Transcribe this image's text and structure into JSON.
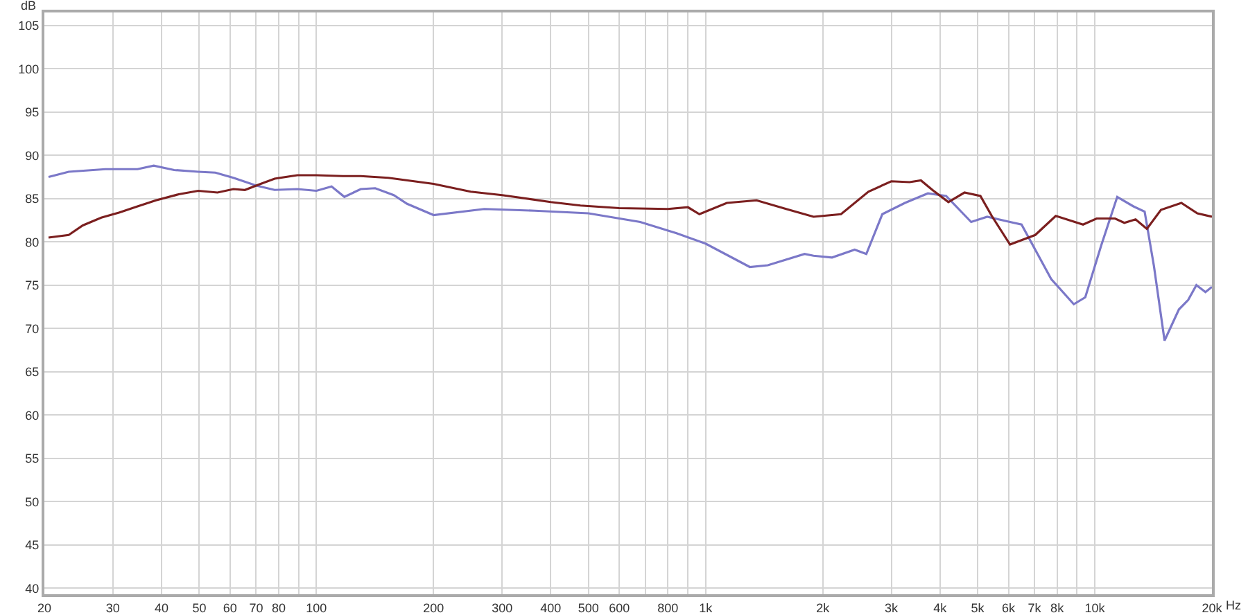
{
  "chart_data": {
    "type": "line",
    "ylabel": "dB",
    "log": "x",
    "grid": true,
    "marker": "none",
    "line_style": "solid",
    "xlim": [
      20,
      20000
    ],
    "ylim": [
      39.3,
      106.5
    ],
    "xticks": [
      20,
      30,
      40,
      50,
      60,
      70,
      80,
      {
        "value": 90,
        "label": null
      },
      100,
      200,
      300,
      400,
      500,
      600,
      {
        "value": 700,
        "label": null
      },
      800,
      {
        "value": 900,
        "label": null
      },
      {
        "value": 1000,
        "label": "1k"
      },
      {
        "value": 2000,
        "label": "2k"
      },
      {
        "value": 3000,
        "label": "3k"
      },
      {
        "value": 4000,
        "label": "4k"
      },
      {
        "value": 5000,
        "label": "5k"
      },
      {
        "value": 6000,
        "label": "6k"
      },
      {
        "value": 7000,
        "label": "7k"
      },
      {
        "value": 8000,
        "label": "8k"
      },
      {
        "value": 9000,
        "label": null
      },
      {
        "value": 10000,
        "label": "10k"
      },
      {
        "value": 20000,
        "label": "20k"
      }
    ],
    "xlabel": "Hz",
    "yticks": [
      40,
      45,
      50,
      55,
      60,
      65,
      70,
      75,
      80,
      85,
      90,
      95,
      100,
      105
    ],
    "series": [
      {
        "color": "#7b78c8",
        "x": [
          20.5,
          23.1,
          28.7,
          34.7,
          38.2,
          43.1,
          49.7,
          55,
          61.2,
          70.1,
          78.1,
          89.3,
          100,
          109.4,
          118,
          130,
          141.6,
          158,
          171,
          200,
          270,
          364,
          500,
          679,
          842,
          1000,
          1299,
          1445,
          1796,
          1894,
          2113,
          2416,
          2588,
          2845,
          3252,
          3725,
          4150,
          4812,
          5292,
          6056,
          6484,
          7729,
          8831,
          9453,
          10390,
          11420,
          12570,
          13430,
          14190,
          15110,
          16450,
          17380,
          18240,
          19250,
          20000
        ],
        "values": [
          87.5,
          88.1,
          88.4,
          88.4,
          88.8,
          88.3,
          88.1,
          88.0,
          87.4,
          86.5,
          86.0,
          86.1,
          85.9,
          86.4,
          85.2,
          86.1,
          86.2,
          85.4,
          84.4,
          83.1,
          83.8,
          83.6,
          83.3,
          82.3,
          81.0,
          79.8,
          77.1,
          77.3,
          78.6,
          78.4,
          78.2,
          79.1,
          78.6,
          83.2,
          84.5,
          85.6,
          85.3,
          82.3,
          82.9,
          82.3,
          82.0,
          75.7,
          72.8,
          73.6,
          79.6,
          85.2,
          84.1,
          83.5,
          77.2,
          68.6,
          72.2,
          73.3,
          75.0,
          74.2,
          74.8
        ]
      },
      {
        "color": "#7b1f1f",
        "x": [
          20.5,
          23.1,
          25.1,
          28,
          31.2,
          34.7,
          38.7,
          44.3,
          49.7,
          55.7,
          61.2,
          65.5,
          71.9,
          78.1,
          89.3,
          100,
          117,
          130,
          153,
          200,
          249,
          300,
          400,
          477,
          600,
          800,
          901,
          964,
          1134,
          1352,
          1611,
          1894,
          2228,
          2620,
          3000,
          3343,
          3575,
          3826,
          4206,
          4625,
          5083,
          5436,
          6056,
          7032,
          7937,
          9330,
          10110,
          11270,
          11910,
          12730,
          13610,
          14790,
          16690,
          18340,
          20000
        ],
        "values": [
          80.5,
          80.8,
          81.9,
          82.8,
          83.4,
          84.1,
          84.8,
          85.5,
          85.9,
          85.7,
          86.1,
          86.0,
          86.7,
          87.3,
          87.7,
          87.7,
          87.6,
          87.6,
          87.4,
          86.7,
          85.8,
          85.4,
          84.6,
          84.2,
          83.9,
          83.8,
          84.0,
          83.2,
          84.5,
          84.8,
          83.8,
          82.9,
          83.2,
          85.8,
          87.0,
          86.9,
          87.1,
          86.0,
          84.6,
          85.7,
          85.3,
          83.0,
          79.7,
          80.8,
          83.0,
          82.0,
          82.7,
          82.7,
          82.2,
          82.6,
          81.5,
          83.7,
          84.5,
          83.3,
          82.9
        ]
      }
    ]
  }
}
